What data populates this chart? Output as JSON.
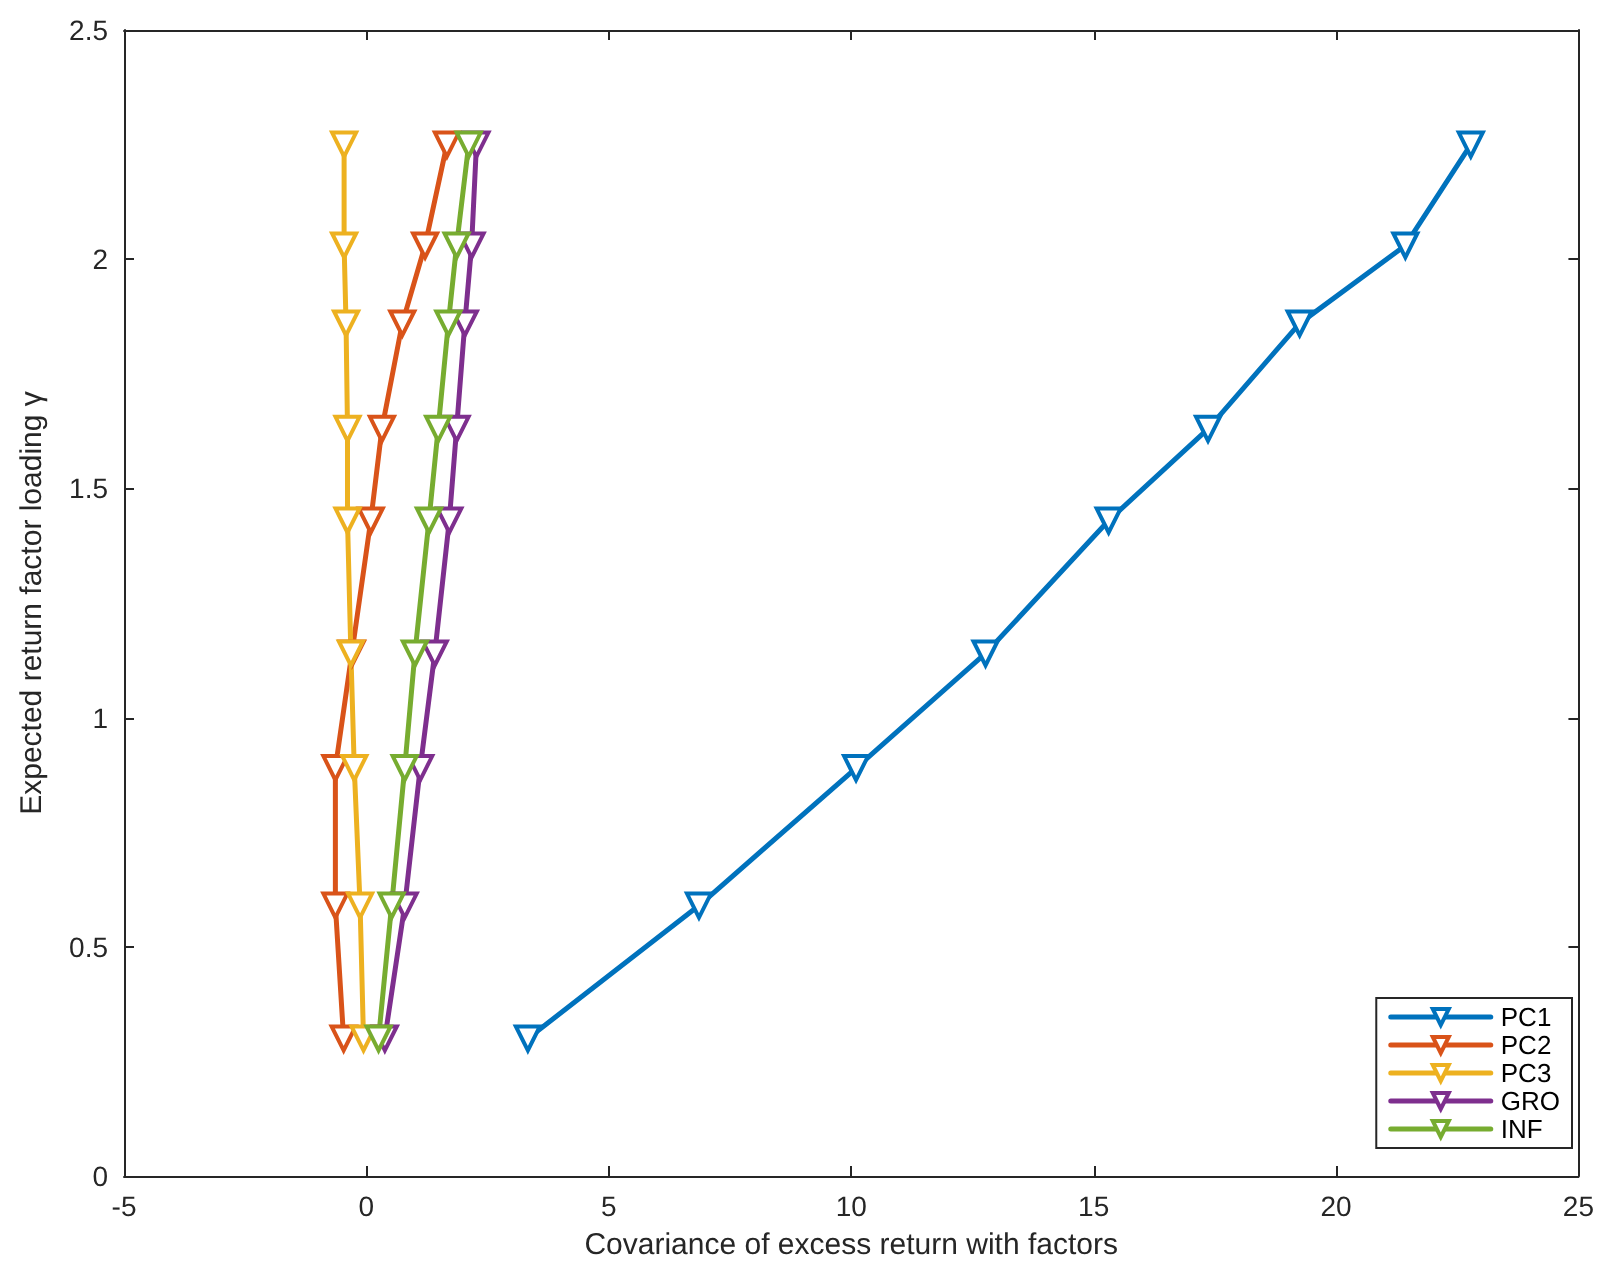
{
  "chart_data": {
    "type": "line",
    "xlabel": "Covariance of excess return with factors",
    "ylabel": "Expected return factor loading γ",
    "xlim": [
      -5,
      25
    ],
    "xticks": [
      -5,
      0,
      5,
      10,
      15,
      20,
      25
    ],
    "ylim": [
      0,
      2.5
    ],
    "yticks": [
      0,
      0.5,
      1,
      1.5,
      2,
      2.5
    ],
    "grid": false,
    "legend": "bottom right",
    "marker": "triangle",
    "line_style": "solid",
    "series": [
      {
        "name": "PC1",
        "color": "#0072bd",
        "x": [
          3.33,
          6.86,
          10.1,
          12.77,
          15.31,
          17.36,
          19.25,
          21.43,
          22.78
        ],
        "values": [
          0.3,
          0.59,
          0.89,
          1.14,
          1.43,
          1.63,
          1.86,
          2.03,
          2.25
        ]
      },
      {
        "name": "PC2",
        "color": "#d95319",
        "x": [
          -0.47,
          -0.64,
          -0.64,
          -0.3,
          0.09,
          0.32,
          0.74,
          1.21,
          1.66
        ],
        "values": [
          0.3,
          0.59,
          0.89,
          1.14,
          1.43,
          1.63,
          1.86,
          2.03,
          2.25
        ]
      },
      {
        "name": "PC3",
        "color": "#edb120",
        "x": [
          -0.06,
          -0.13,
          -0.25,
          -0.32,
          -0.39,
          -0.39,
          -0.42,
          -0.46,
          -0.46
        ],
        "values": [
          0.3,
          0.59,
          0.89,
          1.14,
          1.43,
          1.63,
          1.86,
          2.03,
          2.25
        ]
      },
      {
        "name": "GRO",
        "color": "#7e2f8e",
        "x": [
          0.38,
          0.79,
          1.11,
          1.41,
          1.71,
          1.86,
          2.03,
          2.17,
          2.27
        ],
        "values": [
          0.3,
          0.59,
          0.89,
          1.14,
          1.43,
          1.63,
          1.86,
          2.03,
          2.25
        ]
      },
      {
        "name": "INF",
        "color": "#77ac30",
        "x": [
          0.25,
          0.52,
          0.79,
          1.0,
          1.29,
          1.48,
          1.69,
          1.86,
          2.11
        ],
        "values": [
          0.3,
          0.59,
          0.89,
          1.14,
          1.43,
          1.63,
          1.86,
          2.03,
          2.25
        ]
      }
    ]
  }
}
